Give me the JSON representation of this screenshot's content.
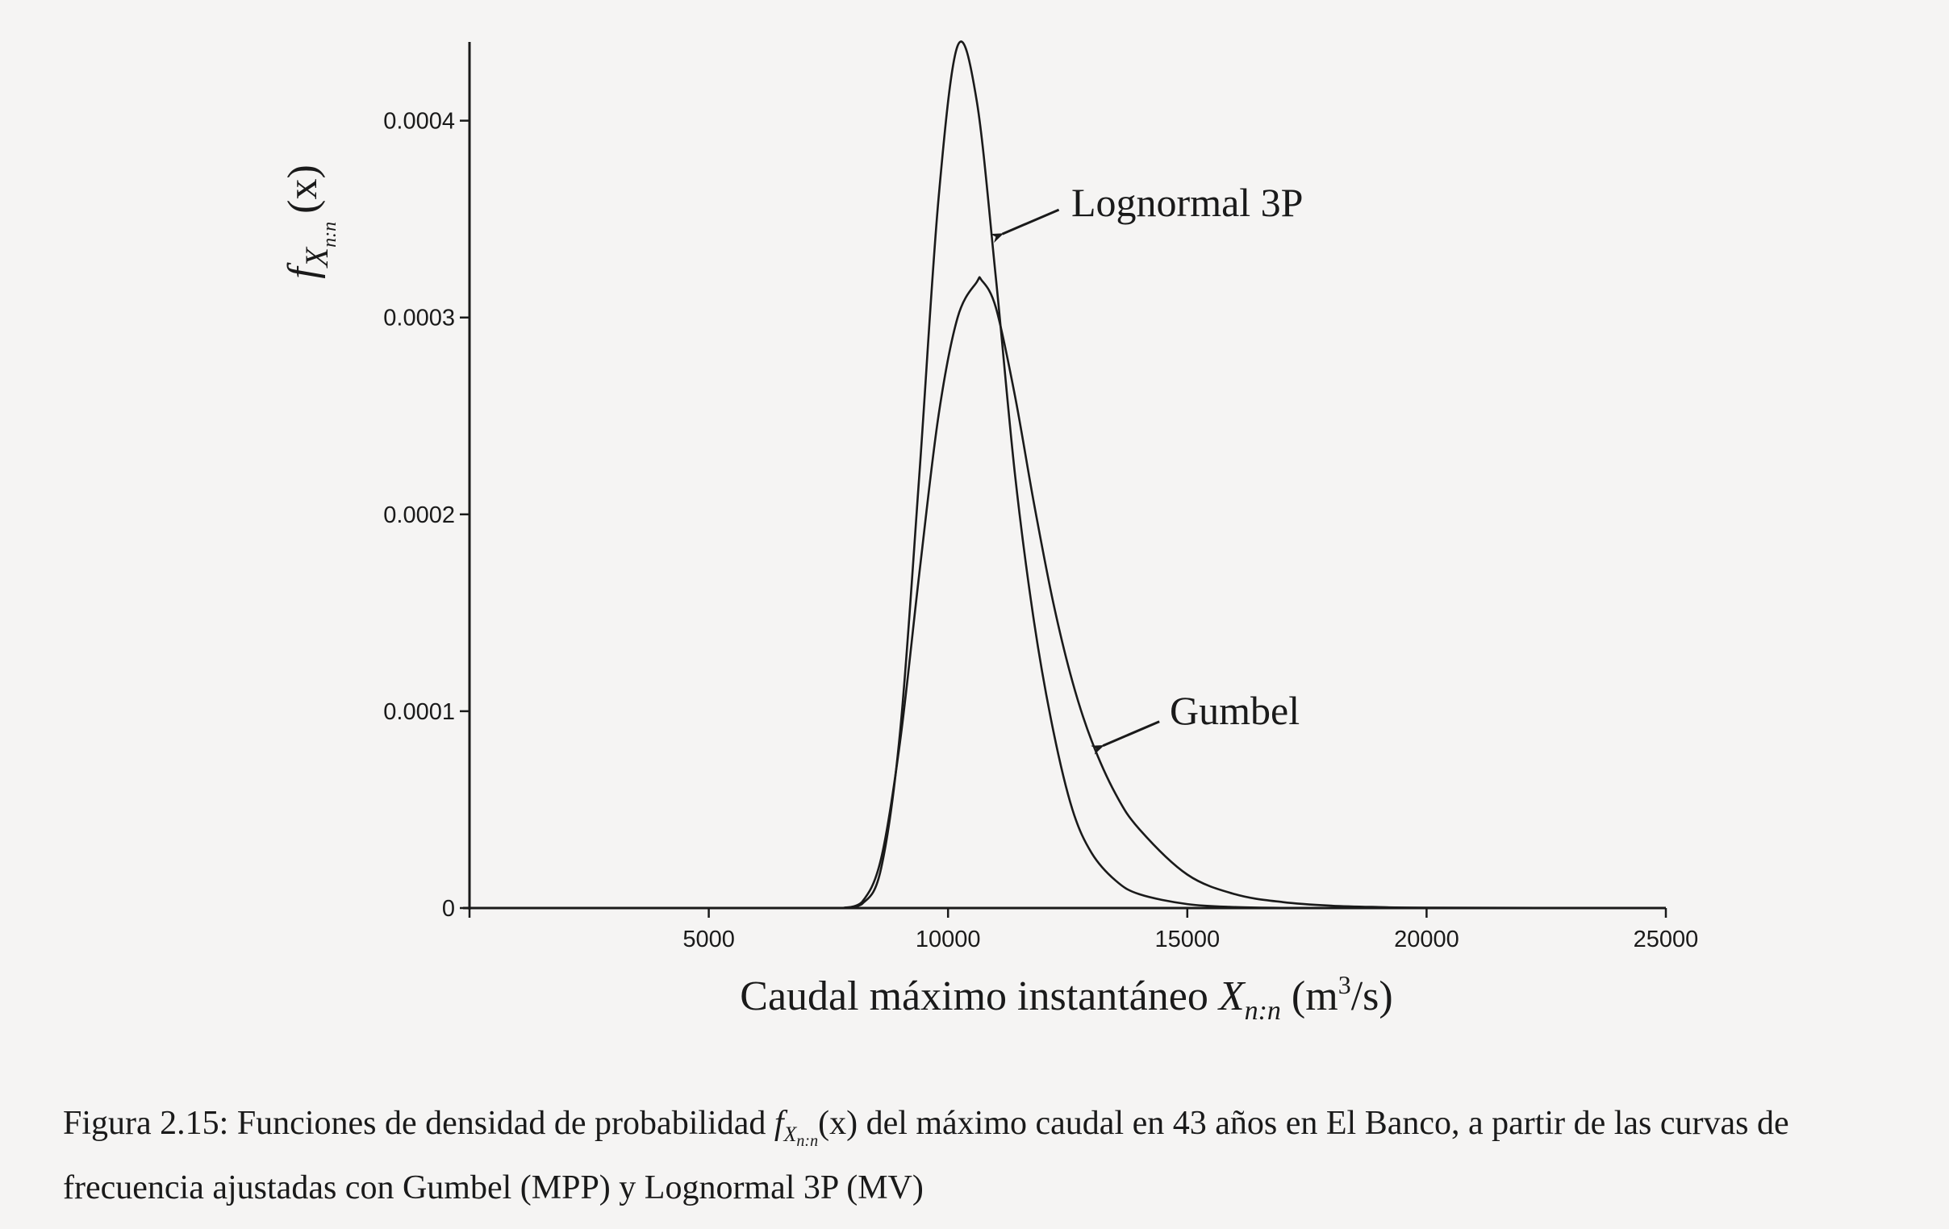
{
  "chart_data": {
    "type": "line",
    "xlim": [
      0,
      25000
    ],
    "ylim": [
      0,
      0.00044
    ],
    "x_ticks": [
      0,
      5000,
      10000,
      15000,
      20000,
      25000
    ],
    "x_tick_labels": [
      "",
      "5000",
      "10000",
      "15000",
      "20000",
      "25000"
    ],
    "y_ticks": [
      0,
      0.0001,
      0.0002,
      0.0003,
      0.0004
    ],
    "y_tick_labels": [
      "0",
      "0.0001",
      "0.0002",
      "0.0003",
      "0.0004"
    ],
    "xlabel": "Caudal máximo instantáneo X_{n:n} (m³/s)",
    "ylabel": "f_{X_{n:n}}(x)",
    "series": [
      {
        "name": "Lognormal 3P",
        "x": [
          7800,
          8200,
          8600,
          9000,
          9400,
          9800,
          10200,
          10600,
          11000,
          11400,
          11800,
          12200,
          12600,
          13000,
          13500,
          14000,
          15000,
          16000,
          17000,
          18000,
          20000,
          25000
        ],
        "y": [
          0,
          2e-06,
          2e-05,
          9e-05,
          0.00022,
          0.00036,
          0.000438,
          0.00041,
          0.00032,
          0.00022,
          0.000145,
          9e-05,
          5e-05,
          2.8e-05,
          1.4e-05,
          7e-06,
          2e-06,
          5e-07,
          1e-07,
          0,
          0,
          0
        ]
      },
      {
        "name": "Gumbel",
        "x": [
          7800,
          8200,
          8600,
          9000,
          9400,
          9800,
          10200,
          10600,
          10700,
          11000,
          11400,
          11800,
          12200,
          12600,
          13000,
          13500,
          14000,
          15000,
          16000,
          17000,
          18000,
          19000,
          20000,
          25000
        ],
        "y": [
          0,
          3e-06,
          2.5e-05,
          8.5e-05,
          0.00017,
          0.00025,
          0.0003,
          0.000318,
          0.000319,
          0.000305,
          0.00026,
          0.000205,
          0.000155,
          0.000115,
          8.5e-05,
          5.8e-05,
          4e-05,
          1.7e-05,
          7e-06,
          3e-06,
          1.2e-06,
          5e-07,
          2e-07,
          0
        ]
      }
    ],
    "annotations": [
      {
        "text": "Lognormal 3P",
        "target": [
          10900,
          0.00034
        ]
      },
      {
        "text": "Gumbel",
        "target": [
          13000,
          8e-05
        ]
      }
    ],
    "grid": false,
    "legend": "none"
  },
  "labels": {
    "xlabel_main": "Caudal máximo instantáneo ",
    "xlabel_var": "X",
    "xlabel_sub": "n:n",
    "xlabel_unit_open": " (m",
    "xlabel_unit_sup": "3",
    "xlabel_unit_close": "/s)",
    "ylabel_f": "f",
    "ylabel_X": "X",
    "ylabel_sub": "n:n",
    "ylabel_arg": "(x)"
  },
  "caption": {
    "lead": "Figura 2.15: Funciones de densidad de probabilidad ",
    "math_f": "f",
    "math_X": "X",
    "math_sub": "n:n",
    "math_arg": "(x)",
    "rest": " del máximo caudal en 43 años en El Banco, a partir de las curvas de frecuencia ajustadas con Gumbel (MPP) y Lognormal 3P (MV)"
  },
  "colors": {
    "line": "#1a1a1a",
    "background": "#f5f4f3"
  }
}
